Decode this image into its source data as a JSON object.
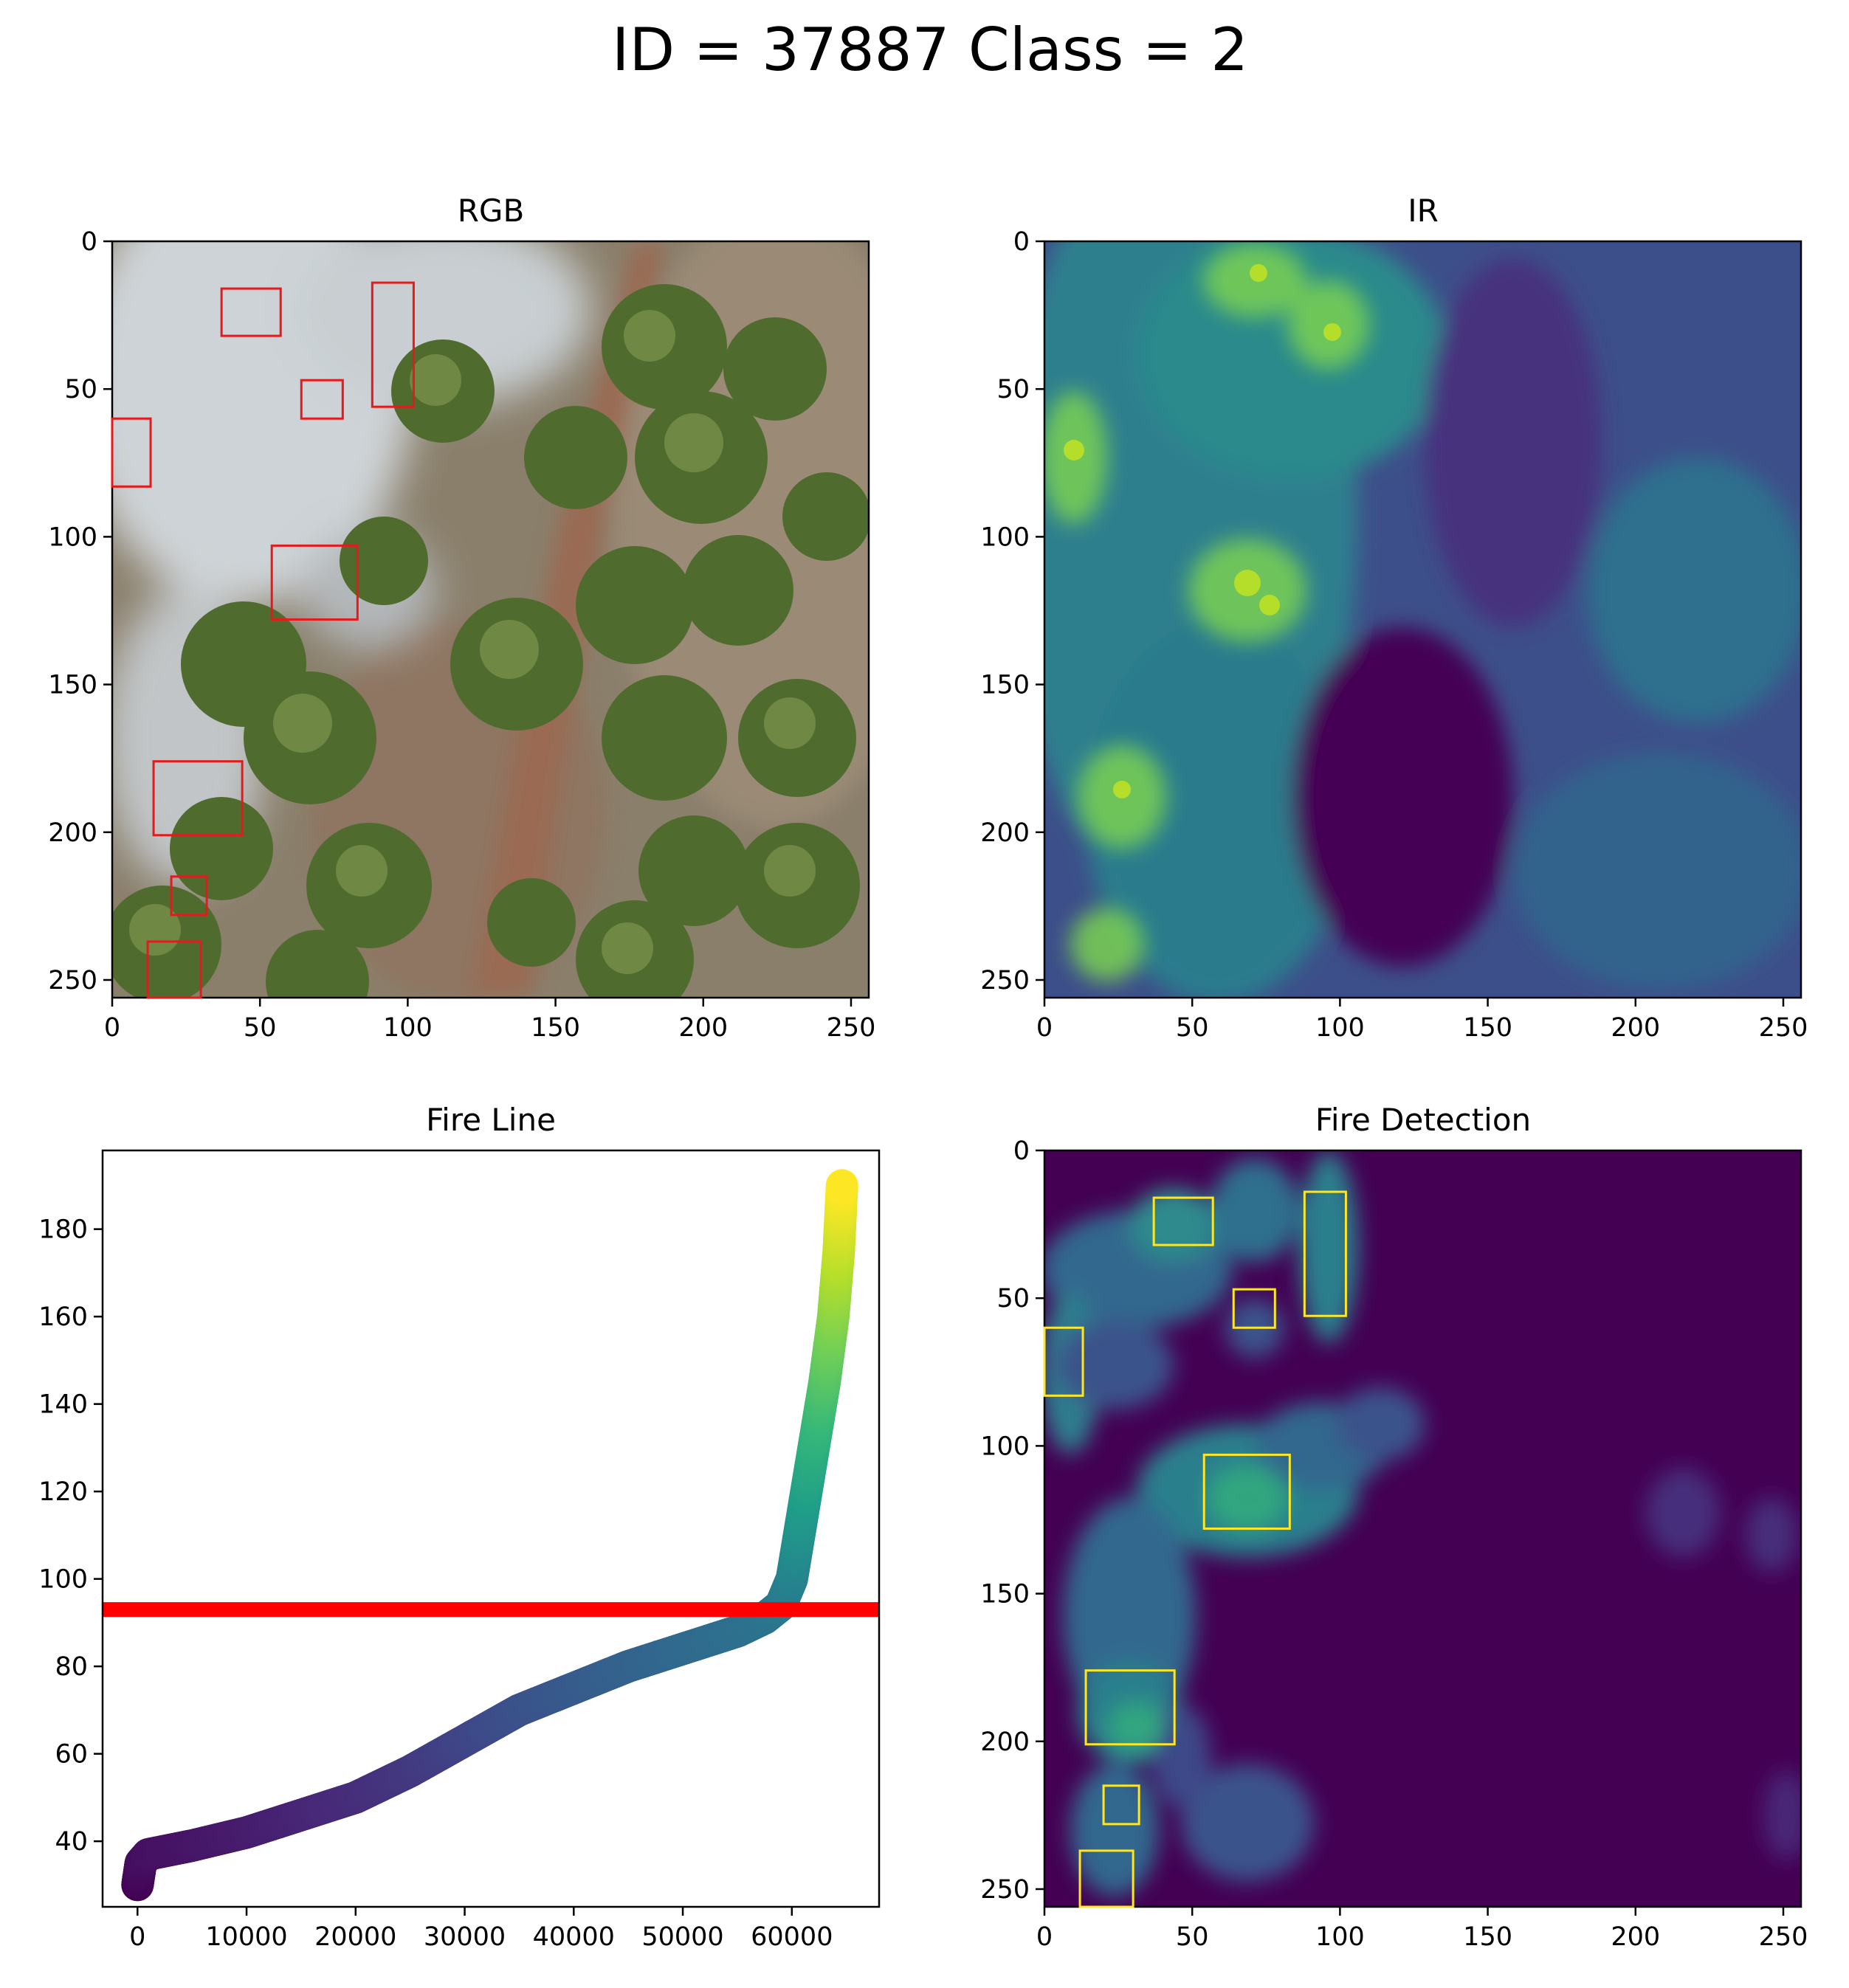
{
  "figure_title": "ID = 37887 Class = 2",
  "chart_data": [
    {
      "type": "heatmap",
      "title": "RGB",
      "description_kind": "photo",
      "xlim": [
        0,
        256
      ],
      "ylim": [
        256,
        0
      ],
      "xticks": [
        "0",
        "50",
        "100",
        "150",
        "200",
        "250"
      ],
      "yticks": [
        "0",
        "50",
        "100",
        "150",
        "200",
        "250"
      ],
      "boxes_color": "#e41a1c",
      "boxes": [
        {
          "x0": 37,
          "y0": 16,
          "x1": 57,
          "y1": 32
        },
        {
          "x0": 88,
          "y0": 14,
          "x1": 102,
          "y1": 56
        },
        {
          "x0": 64,
          "y0": 47,
          "x1": 78,
          "y1": 60
        },
        {
          "x0": 0,
          "y0": 60,
          "x1": 13,
          "y1": 83
        },
        {
          "x0": 54,
          "y0": 103,
          "x1": 83,
          "y1": 128
        },
        {
          "x0": 14,
          "y0": 176,
          "x1": 44,
          "y1": 201
        },
        {
          "x0": 20,
          "y0": 215,
          "x1": 32,
          "y1": 228
        },
        {
          "x0": 12,
          "y0": 237,
          "x1": 30,
          "y1": 256
        }
      ]
    },
    {
      "type": "heatmap",
      "title": "IR",
      "colormap": "viridis",
      "xlim": [
        0,
        256
      ],
      "ylim": [
        256,
        0
      ],
      "xticks": [
        "0",
        "50",
        "100",
        "150",
        "200",
        "250"
      ],
      "yticks": [
        "0",
        "50",
        "100",
        "150",
        "200",
        "250"
      ]
    },
    {
      "type": "scatter",
      "title": "Fire Line",
      "colormap": "viridis",
      "xlim": [
        -3200,
        68000
      ],
      "ylim": [
        25,
        198
      ],
      "xticks": [
        "0",
        "10000",
        "20000",
        "30000",
        "40000",
        "50000",
        "60000"
      ],
      "yticks": [
        "40",
        "60",
        "80",
        "100",
        "120",
        "140",
        "160",
        "180"
      ],
      "x": [
        0,
        300,
        1000,
        3000,
        5000,
        10000,
        15000,
        20000,
        25000,
        30000,
        35000,
        40000,
        45000,
        50000,
        55000,
        57500,
        59000,
        60000,
        61000,
        62000,
        63000,
        63800,
        64300,
        64600
      ],
      "y": [
        30,
        35,
        37,
        38,
        39,
        42,
        46,
        50,
        56,
        63,
        70,
        75,
        80,
        84,
        88,
        91,
        94,
        100,
        115,
        130,
        145,
        160,
        175,
        190
      ],
      "threshold_y": 93,
      "threshold_color": "#ff0000"
    },
    {
      "type": "heatmap",
      "title": "Fire Detection",
      "colormap": "viridis",
      "xlim": [
        0,
        256
      ],
      "ylim": [
        256,
        0
      ],
      "xticks": [
        "0",
        "50",
        "100",
        "150",
        "200",
        "250"
      ],
      "yticks": [
        "0",
        "50",
        "100",
        "150",
        "200",
        "250"
      ],
      "boxes_color": "#fde725",
      "boxes": [
        {
          "x0": 37,
          "y0": 16,
          "x1": 57,
          "y1": 32
        },
        {
          "x0": 88,
          "y0": 14,
          "x1": 102,
          "y1": 56
        },
        {
          "x0": 64,
          "y0": 47,
          "x1": 78,
          "y1": 60
        },
        {
          "x0": 0,
          "y0": 60,
          "x1": 13,
          "y1": 83
        },
        {
          "x0": 54,
          "y0": 103,
          "x1": 83,
          "y1": 128
        },
        {
          "x0": 14,
          "y0": 176,
          "x1": 44,
          "y1": 201
        },
        {
          "x0": 20,
          "y0": 215,
          "x1": 32,
          "y1": 228
        },
        {
          "x0": 12,
          "y0": 237,
          "x1": 30,
          "y1": 256
        }
      ]
    }
  ]
}
